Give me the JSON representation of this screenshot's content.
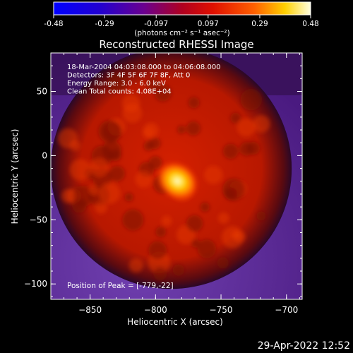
{
  "chart_data": {
    "type": "heatmap",
    "title": "Reconstructed RHESSI Image",
    "colorbar": {
      "ticks": [
        "-0.48",
        "-0.29",
        "-0.097",
        "0.097",
        "0.29",
        "0.48"
      ],
      "label": "(photons cm⁻² s⁻¹ asec⁻²)",
      "range": [
        -0.48,
        0.48
      ]
    },
    "xlabel": "Heliocentric X (arcsec)",
    "ylabel": "Heliocentric Y (arcsec)",
    "xlim": [
      -880,
      -688
    ],
    "ylim": [
      -112,
      80
    ],
    "xticks": [
      -850,
      -800,
      -750,
      -700
    ],
    "yticks": [
      -100,
      -50,
      0,
      50
    ],
    "annotations": [
      "18-Mar-2004 04:03:08.000 to 04:06:08.000",
      "Detectors: 3F 4F 5F 6F 7F 8F, Att 0",
      "Energy Range: 3.0 - 6.0 keV",
      "Clean    Total counts: 4.08E+04"
    ],
    "peak_text": "Position of Peak = [-779,-22]",
    "peak": [
      -779,
      -22
    ],
    "disk": {
      "center": [
        -788,
        -10
      ],
      "radius": 92
    },
    "grid": false
  },
  "footer": {
    "timestamp": "29-Apr-2022 12:52"
  }
}
